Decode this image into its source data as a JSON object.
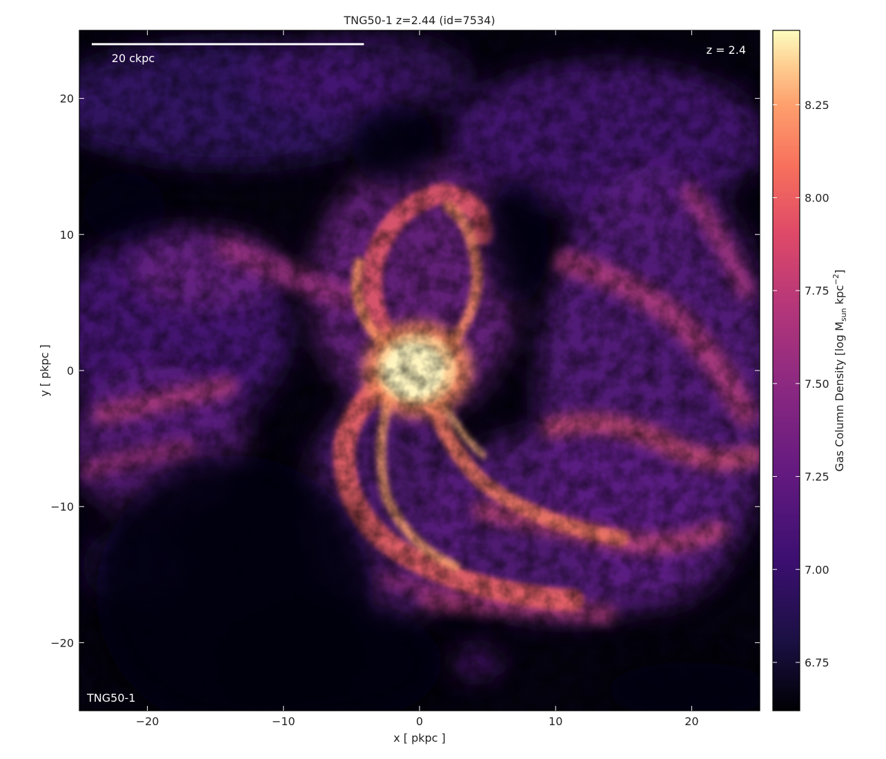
{
  "chart_data": {
    "type": "heatmap",
    "title": "TNG50-1 z=2.44 (id=7534)",
    "xlabel": "x [ pkpc ]",
    "ylabel": "y [ pkpc ]",
    "xlim": [
      -25,
      25
    ],
    "ylim": [
      -25,
      25
    ],
    "xticks": [
      -20,
      -10,
      0,
      10,
      20
    ],
    "yticks": [
      -20,
      -10,
      0,
      10,
      20
    ],
    "xtick_labels": [
      "−20",
      "−10",
      "0",
      "10",
      "20"
    ],
    "ytick_labels": [
      "−20",
      "−10",
      "0",
      "10",
      "20"
    ],
    "grid": false,
    "colormap": "magma",
    "colorbar": {
      "label_main": "Gas Column Density [log M",
      "label_sub": "sun",
      "label_mid": " kpc",
      "label_sup": "−2",
      "label_end": "]",
      "range": [
        6.62,
        8.45
      ],
      "ticks": [
        6.75,
        7.0,
        7.25,
        7.5,
        7.75,
        8.0,
        8.25
      ],
      "tick_labels": [
        "6.75",
        "7.00",
        "7.25",
        "7.50",
        "7.75",
        "8.00",
        "8.25"
      ]
    },
    "annotations": {
      "scalebar_label": "20 ckpc",
      "scalebar_length": 20,
      "redshift_label": "z = 2.4",
      "sim_label": "TNG50-1"
    },
    "palette": {
      "background": "#050310",
      "low": "#2a0f5e",
      "mid_low": "#5c1e84",
      "mid": "#a23779",
      "mid_high": "#e3586a",
      "high": "#fca66f",
      "peak": "#fdf4c0"
    }
  }
}
